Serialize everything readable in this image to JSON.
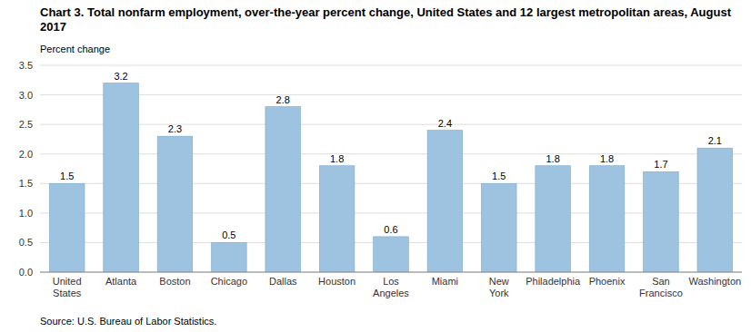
{
  "chart_data": {
    "type": "bar",
    "title": "Chart 3. Total nonfarm employment, over-the-year percent change, United States and 12 largest metropolitan areas, August 2017",
    "ylabel": "Percent change",
    "source": "Source: U.S. Bureau of Labor Statistics.",
    "categories": [
      "United\nStates",
      "Atlanta",
      "Boston",
      "Chicago",
      "Dallas",
      "Houston",
      "Los\nAngeles",
      "Miami",
      "New\nYork",
      "Philadelphia",
      "Phoenix",
      "San\nFrancisco",
      "Washington"
    ],
    "values": [
      1.5,
      3.2,
      2.3,
      0.5,
      2.8,
      1.8,
      0.6,
      2.4,
      1.5,
      1.8,
      1.8,
      1.7,
      2.1
    ],
    "color": "#9dc3e0",
    "ylim": [
      0,
      3.5
    ],
    "yticks": [
      {
        "value": 0,
        "label": "0.0"
      },
      0.5,
      {
        "value": 1,
        "label": "1.0"
      },
      1.5,
      {
        "value": 2,
        "label": "2.0"
      },
      2.5,
      {
        "value": 3,
        "label": "3.0"
      },
      3.5
    ],
    "grid": true,
    "data_labels": true
  }
}
